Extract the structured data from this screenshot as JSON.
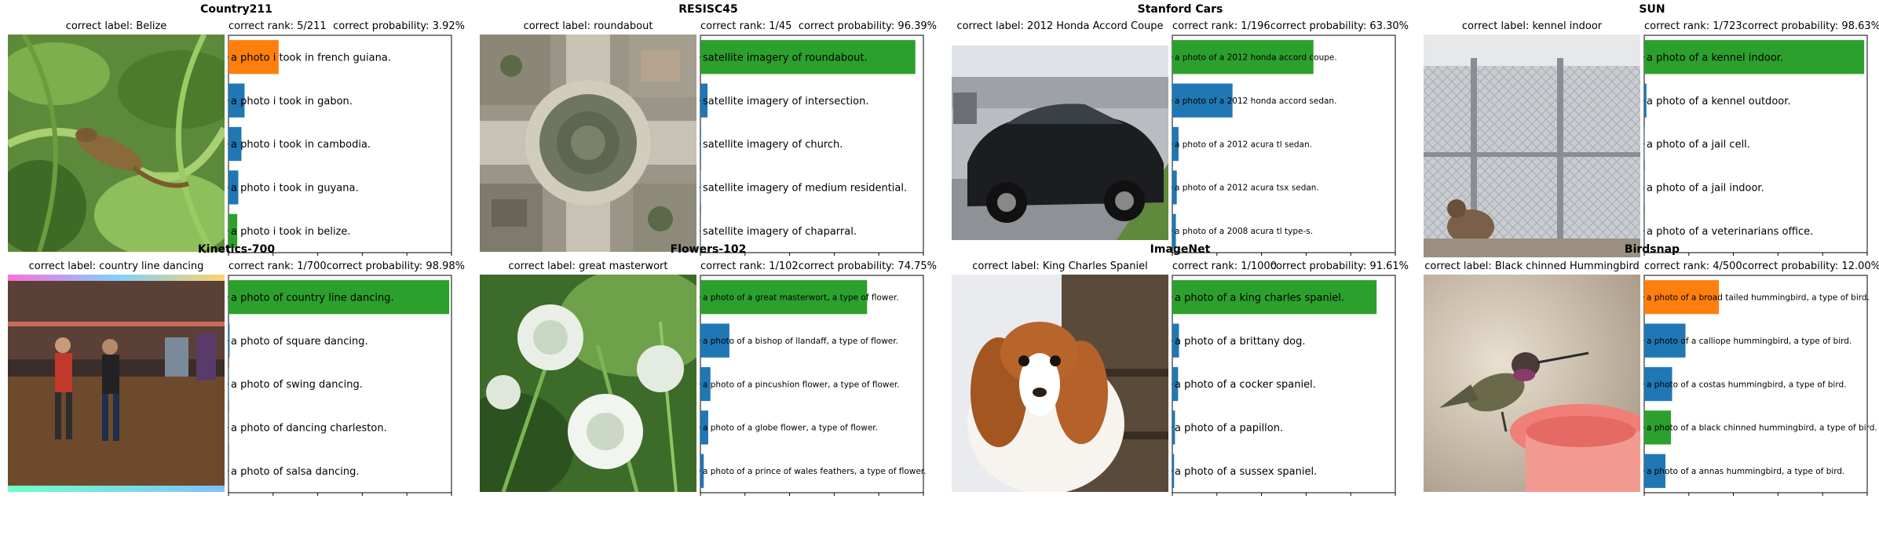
{
  "chart_data": [
    {
      "type": "bar",
      "orientation": "horizontal",
      "title": "Country211",
      "correct_label": "correct label: Belize",
      "rank_text": "correct rank: 5/211",
      "prob_text": "correct probability: 3.92%",
      "xlim": [
        0,
        100
      ],
      "xticks": [
        "0",
        "20",
        "40",
        "60",
        "80",
        "100"
      ],
      "categories": [
        "a photo i took in french guiana.",
        "a photo i took in gabon.",
        "a photo i took in cambodia.",
        "a photo i took in guyana.",
        "a photo i took in belize."
      ],
      "values": [
        22.5,
        7.2,
        5.8,
        4.4,
        3.92
      ],
      "bar_colors": [
        "#ff7f0e",
        "#1f77b4",
        "#1f77b4",
        "#1f77b4",
        "#2ca02c"
      ],
      "label_size": "large"
    },
    {
      "type": "bar",
      "orientation": "horizontal",
      "title": "RESISC45",
      "correct_label": "correct label: roundabout",
      "rank_text": "correct rank: 1/45",
      "prob_text": "correct probability: 96.39%",
      "xlim": [
        0,
        100
      ],
      "xticks": [
        "0",
        "20",
        "40",
        "60",
        "80",
        "100"
      ],
      "categories": [
        "satellite imagery of roundabout.",
        "satellite imagery of intersection.",
        "satellite imagery of church.",
        "satellite imagery of medium residential.",
        "satellite imagery of chaparral."
      ],
      "values": [
        96.39,
        3.2,
        0.3,
        0.2,
        0.1
      ],
      "bar_colors": [
        "#2ca02c",
        "#1f77b4",
        "#1f77b4",
        "#1f77b4",
        "#1f77b4"
      ],
      "label_size": "large"
    },
    {
      "type": "bar",
      "orientation": "horizontal",
      "title": "Stanford Cars",
      "correct_label": "correct label: 2012 Honda Accord Coupe",
      "rank_text": "correct rank: 1/196",
      "prob_text": "correct probability: 63.30%",
      "xlim": [
        0,
        100
      ],
      "xticks": [
        "0",
        "20",
        "40",
        "60",
        "80",
        "100"
      ],
      "categories": [
        "a photo of a 2012 honda accord coupe.",
        "a photo of a 2012 honda accord sedan.",
        "a photo of a 2012 acura tl sedan.",
        "a photo of a 2012 acura tsx sedan.",
        "a photo of a 2008 acura tl type-s."
      ],
      "values": [
        63.3,
        27.0,
        2.8,
        2.0,
        1.6
      ],
      "bar_colors": [
        "#2ca02c",
        "#1f77b4",
        "#1f77b4",
        "#1f77b4",
        "#1f77b4"
      ],
      "label_size": "small"
    },
    {
      "type": "bar",
      "orientation": "horizontal",
      "title": "SUN",
      "correct_label": "correct label: kennel indoor",
      "rank_text": "correct rank: 1/723",
      "prob_text": "correct probability: 98.63%",
      "xlim": [
        0,
        100
      ],
      "xticks": [
        "0",
        "20",
        "40",
        "60",
        "80",
        "100"
      ],
      "categories": [
        "a photo of a kennel indoor.",
        "a photo of a kennel outdoor.",
        "a photo of a jail cell.",
        "a photo of a jail indoor.",
        "a photo of a veterinarians office."
      ],
      "values": [
        98.63,
        1.0,
        0.2,
        0.1,
        0.05
      ],
      "bar_colors": [
        "#2ca02c",
        "#1f77b4",
        "#1f77b4",
        "#1f77b4",
        "#1f77b4"
      ],
      "label_size": "large"
    },
    {
      "type": "bar",
      "orientation": "horizontal",
      "title": "Kinetics-700",
      "correct_label": "correct label: country line dancing",
      "rank_text": "correct rank: 1/700",
      "prob_text": "correct probability: 98.98%",
      "xlim": [
        0,
        100
      ],
      "xticks": [
        "0",
        "20",
        "40",
        "60",
        "80",
        "100"
      ],
      "categories": [
        "a photo of country line dancing.",
        "a photo of square dancing.",
        "a photo of swing dancing.",
        "a photo of dancing charleston.",
        "a photo of salsa dancing."
      ],
      "values": [
        98.98,
        0.5,
        0.2,
        0.1,
        0.05
      ],
      "bar_colors": [
        "#2ca02c",
        "#1f77b4",
        "#1f77b4",
        "#1f77b4",
        "#1f77b4"
      ],
      "label_size": "large"
    },
    {
      "type": "bar",
      "orientation": "horizontal",
      "title": "Flowers-102",
      "correct_label": "correct label: great masterwort",
      "rank_text": "correct rank: 1/102",
      "prob_text": "correct probability: 74.75%",
      "xlim": [
        0,
        100
      ],
      "xticks": [
        "0",
        "20",
        "40",
        "60",
        "80",
        "100"
      ],
      "categories": [
        "a photo of a great masterwort, a type of flower.",
        "a photo of a bishop of llandaff, a type of flower.",
        "a photo of a pincushion flower, a type of flower.",
        "a photo of a globe flower, a type of flower.",
        "a photo of a prince of wales feathers, a type of flower."
      ],
      "values": [
        74.75,
        13.0,
        4.5,
        3.5,
        1.5
      ],
      "bar_colors": [
        "#2ca02c",
        "#1f77b4",
        "#1f77b4",
        "#1f77b4",
        "#1f77b4"
      ],
      "label_size": "small"
    },
    {
      "type": "bar",
      "orientation": "horizontal",
      "title": "ImageNet",
      "correct_label": "correct label: King Charles Spaniel",
      "rank_text": "correct rank: 1/1000",
      "prob_text": "correct probability: 91.61%",
      "xlim": [
        0,
        100
      ],
      "xticks": [
        "0",
        "20",
        "40",
        "60",
        "80",
        "100"
      ],
      "categories": [
        "a photo of a king charles spaniel.",
        "a photo of a brittany dog.",
        "a photo of a cocker spaniel.",
        "a photo of a papillon.",
        "a photo of a sussex spaniel."
      ],
      "values": [
        91.61,
        3.0,
        2.6,
        1.2,
        0.8
      ],
      "bar_colors": [
        "#2ca02c",
        "#1f77b4",
        "#1f77b4",
        "#1f77b4",
        "#1f77b4"
      ],
      "label_size": "large"
    },
    {
      "type": "bar",
      "orientation": "horizontal",
      "title": "Birdsnap",
      "correct_label": "correct label: Black chinned Hummingbird",
      "rank_text": "correct rank: 4/500",
      "prob_text": "correct probability: 12.00%",
      "xlim": [
        0,
        100
      ],
      "xticks": [
        "0",
        "20",
        "40",
        "60",
        "80",
        "100"
      ],
      "categories": [
        "a photo of a broad tailed hummingbird, a type of bird.",
        "a photo of a calliope hummingbird, a type of bird.",
        "a photo of a costas hummingbird, a type of bird.",
        "a photo of a black chinned hummingbird, a type of bird.",
        "a photo of a annas hummingbird, a type of bird."
      ],
      "values": [
        33.5,
        18.5,
        12.5,
        12.0,
        9.5
      ],
      "bar_colors": [
        "#ff7f0e",
        "#1f77b4",
        "#1f77b4",
        "#2ca02c",
        "#1f77b4"
      ],
      "label_size": "small"
    }
  ]
}
